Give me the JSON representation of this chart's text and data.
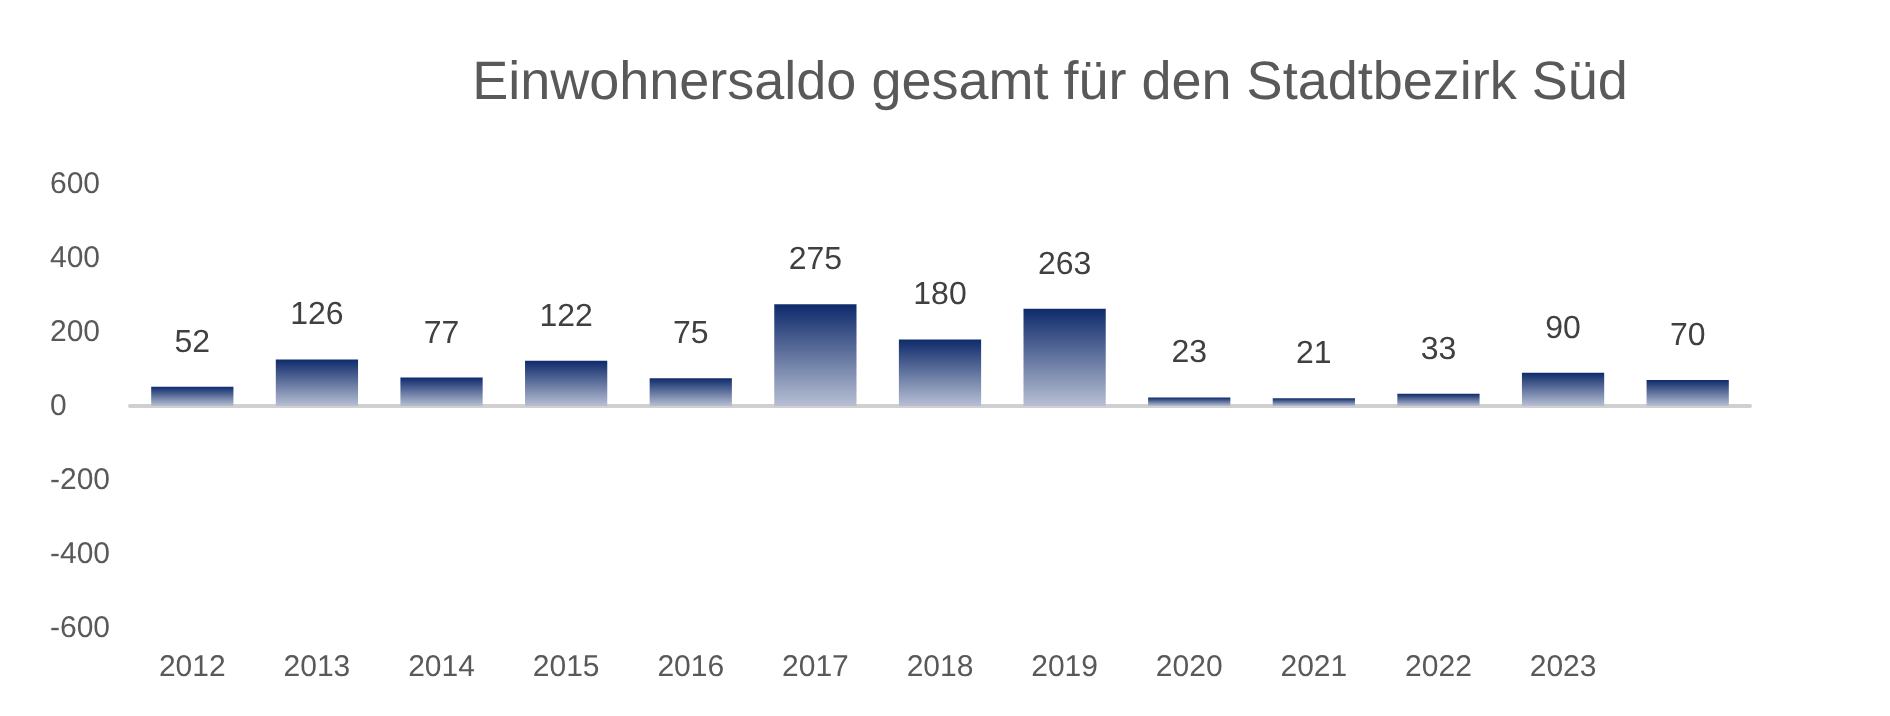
{
  "chart_data": {
    "type": "bar",
    "title": "Einwohnersaldo gesamt für den Stadtbezirk Süd",
    "categories": [
      "2012",
      "2013",
      "2014",
      "2015",
      "2016",
      "2017",
      "2018",
      "2019",
      "2020",
      "2021",
      "2022",
      "2023",
      null
    ],
    "values": [
      52,
      126,
      77,
      122,
      75,
      275,
      180,
      263,
      23,
      21,
      33,
      90,
      70
    ],
    "color": "#0e2a6b",
    "ylim": [
      -600,
      600
    ],
    "yticks": [
      -600,
      -400,
      -200,
      0,
      200,
      400,
      600
    ],
    "data_labels": true
  }
}
